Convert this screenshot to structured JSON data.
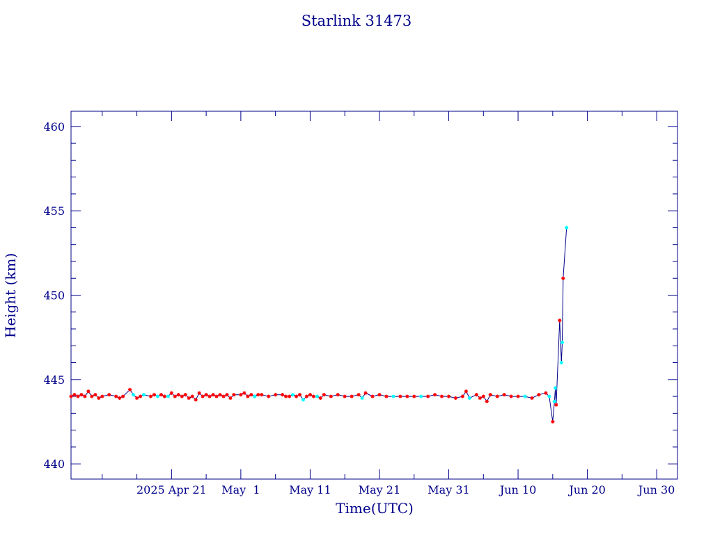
{
  "chart_data": {
    "type": "line",
    "title": "Starlink 31473",
    "xlabel": "Time(UTC)",
    "ylabel": "Height (km)",
    "x_axis": {
      "kind": "date",
      "range": [
        "2025-04-06T12:00",
        "2025-07-03T00:00"
      ],
      "tick_labels": [
        {
          "date": "2025-04-21",
          "label": "2025 Apr 21"
        },
        {
          "date": "2025-05-01",
          "label": "May  1"
        },
        {
          "date": "2025-05-11",
          "label": "May 11"
        },
        {
          "date": "2025-05-21",
          "label": "May 21"
        },
        {
          "date": "2025-05-31",
          "label": "May 31"
        },
        {
          "date": "2025-06-10",
          "label": "Jun 10"
        },
        {
          "date": "2025-06-20",
          "label": "Jun 20"
        },
        {
          "date": "2025-06-30",
          "label": "Jun 30"
        }
      ]
    },
    "y_axis": {
      "range": [
        439.1,
        460.9
      ],
      "major_ticks": [
        440,
        445,
        450,
        455,
        460
      ],
      "tick_labels": [
        "440",
        "445",
        "450",
        "455",
        "460"
      ]
    },
    "grid": false,
    "colors": {
      "axis": "#00008b",
      "line": "#00008b",
      "marker_primary": "#ff0000",
      "marker_secondary": "#00ffff"
    },
    "series": [
      {
        "points": [
          {
            "x": "2025-04-06T12:00",
            "y": 444.0,
            "m": "r"
          },
          {
            "x": "2025-04-07T00:00",
            "y": 444.1,
            "m": "r"
          },
          {
            "x": "2025-04-07T12:00",
            "y": 444.0,
            "m": "r"
          },
          {
            "x": "2025-04-08T00:00",
            "y": 444.1,
            "m": "r"
          },
          {
            "x": "2025-04-08T12:00",
            "y": 444.0,
            "m": "r"
          },
          {
            "x": "2025-04-09T00:00",
            "y": 444.3,
            "m": "r"
          },
          {
            "x": "2025-04-09T12:00",
            "y": 444.0,
            "m": "r"
          },
          {
            "x": "2025-04-10T00:00",
            "y": 444.1,
            "m": "r"
          },
          {
            "x": "2025-04-10T12:00",
            "y": 443.9,
            "m": "r"
          },
          {
            "x": "2025-04-11T00:00",
            "y": 444.0,
            "m": "r"
          },
          {
            "x": "2025-04-12T00:00",
            "y": 444.1,
            "m": "r"
          },
          {
            "x": "2025-04-13T00:00",
            "y": 444.0,
            "m": "r"
          },
          {
            "x": "2025-04-13T12:00",
            "y": 443.9,
            "m": "r"
          },
          {
            "x": "2025-04-14T00:00",
            "y": 444.0,
            "m": "r"
          },
          {
            "x": "2025-04-15T00:00",
            "y": 444.4,
            "m": "r"
          },
          {
            "x": "2025-04-15T12:00",
            "y": 444.1,
            "m": "c"
          },
          {
            "x": "2025-04-16T00:00",
            "y": 443.9,
            "m": "r"
          },
          {
            "x": "2025-04-16T12:00",
            "y": 444.0,
            "m": "r"
          },
          {
            "x": "2025-04-17T00:00",
            "y": 444.1,
            "m": "c"
          },
          {
            "x": "2025-04-18T00:00",
            "y": 444.0,
            "m": "r"
          },
          {
            "x": "2025-04-18T12:00",
            "y": 444.1,
            "m": "r"
          },
          {
            "x": "2025-04-19T00:00",
            "y": 444.0,
            "m": "c"
          },
          {
            "x": "2025-04-19T12:00",
            "y": 444.1,
            "m": "r"
          },
          {
            "x": "2025-04-20T00:00",
            "y": 444.0,
            "m": "r"
          },
          {
            "x": "2025-04-20T12:00",
            "y": 444.0,
            "m": "c"
          },
          {
            "x": "2025-04-21T00:00",
            "y": 444.2,
            "m": "r"
          },
          {
            "x": "2025-04-21T12:00",
            "y": 444.0,
            "m": "r"
          },
          {
            "x": "2025-04-22T00:00",
            "y": 444.1,
            "m": "r"
          },
          {
            "x": "2025-04-22T12:00",
            "y": 444.0,
            "m": "r"
          },
          {
            "x": "2025-04-23T00:00",
            "y": 444.1,
            "m": "r"
          },
          {
            "x": "2025-04-23T12:00",
            "y": 443.9,
            "m": "r"
          },
          {
            "x": "2025-04-24T00:00",
            "y": 444.0,
            "m": "r"
          },
          {
            "x": "2025-04-24T12:00",
            "y": 443.8,
            "m": "r"
          },
          {
            "x": "2025-04-25T00:00",
            "y": 444.2,
            "m": "r"
          },
          {
            "x": "2025-04-25T12:00",
            "y": 444.0,
            "m": "r"
          },
          {
            "x": "2025-04-26T00:00",
            "y": 444.1,
            "m": "r"
          },
          {
            "x": "2025-04-26T12:00",
            "y": 444.0,
            "m": "r"
          },
          {
            "x": "2025-04-27T00:00",
            "y": 444.1,
            "m": "r"
          },
          {
            "x": "2025-04-27T12:00",
            "y": 444.0,
            "m": "r"
          },
          {
            "x": "2025-04-28T00:00",
            "y": 444.1,
            "m": "r"
          },
          {
            "x": "2025-04-28T12:00",
            "y": 444.0,
            "m": "r"
          },
          {
            "x": "2025-04-29T00:00",
            "y": 444.1,
            "m": "r"
          },
          {
            "x": "2025-04-29T12:00",
            "y": 443.9,
            "m": "r"
          },
          {
            "x": "2025-04-30T00:00",
            "y": 444.1,
            "m": "r"
          },
          {
            "x": "2025-05-01T00:00",
            "y": 444.1,
            "m": "r"
          },
          {
            "x": "2025-05-01T12:00",
            "y": 444.2,
            "m": "r"
          },
          {
            "x": "2025-05-02T00:00",
            "y": 444.0,
            "m": "r"
          },
          {
            "x": "2025-05-02T12:00",
            "y": 444.1,
            "m": "r"
          },
          {
            "x": "2025-05-03T00:00",
            "y": 444.0,
            "m": "c"
          },
          {
            "x": "2025-05-03T12:00",
            "y": 444.1,
            "m": "r"
          },
          {
            "x": "2025-05-04T00:00",
            "y": 444.1,
            "m": "r"
          },
          {
            "x": "2025-05-05T00:00",
            "y": 444.0,
            "m": "r"
          },
          {
            "x": "2025-05-06T00:00",
            "y": 444.1,
            "m": "r"
          },
          {
            "x": "2025-05-07T00:00",
            "y": 444.1,
            "m": "r"
          },
          {
            "x": "2025-05-07T12:00",
            "y": 444.0,
            "m": "r"
          },
          {
            "x": "2025-05-08T00:00",
            "y": 444.0,
            "m": "r"
          },
          {
            "x": "2025-05-08T12:00",
            "y": 444.1,
            "m": "c"
          },
          {
            "x": "2025-05-09T00:00",
            "y": 444.0,
            "m": "r"
          },
          {
            "x": "2025-05-09T12:00",
            "y": 444.1,
            "m": "r"
          },
          {
            "x": "2025-05-10T00:00",
            "y": 443.8,
            "m": "c"
          },
          {
            "x": "2025-05-10T12:00",
            "y": 444.0,
            "m": "r"
          },
          {
            "x": "2025-05-11T00:00",
            "y": 444.1,
            "m": "r"
          },
          {
            "x": "2025-05-11T12:00",
            "y": 444.0,
            "m": "r"
          },
          {
            "x": "2025-05-12T00:00",
            "y": 444.0,
            "m": "c"
          },
          {
            "x": "2025-05-12T12:00",
            "y": 443.9,
            "m": "r"
          },
          {
            "x": "2025-05-13T00:00",
            "y": 444.1,
            "m": "r"
          },
          {
            "x": "2025-05-14T00:00",
            "y": 444.0,
            "m": "r"
          },
          {
            "x": "2025-05-15T00:00",
            "y": 444.1,
            "m": "r"
          },
          {
            "x": "2025-05-16T00:00",
            "y": 444.0,
            "m": "r"
          },
          {
            "x": "2025-05-17T00:00",
            "y": 444.0,
            "m": "r"
          },
          {
            "x": "2025-05-18T00:00",
            "y": 444.1,
            "m": "r"
          },
          {
            "x": "2025-05-18T12:00",
            "y": 443.9,
            "m": "c"
          },
          {
            "x": "2025-05-19T00:00",
            "y": 444.2,
            "m": "r"
          },
          {
            "x": "2025-05-20T00:00",
            "y": 444.0,
            "m": "r"
          },
          {
            "x": "2025-05-21T00:00",
            "y": 444.1,
            "m": "r"
          },
          {
            "x": "2025-05-22T00:00",
            "y": 444.0,
            "m": "r"
          },
          {
            "x": "2025-05-23T00:00",
            "y": 444.0,
            "m": "c"
          },
          {
            "x": "2025-05-24T00:00",
            "y": 444.0,
            "m": "r"
          },
          {
            "x": "2025-05-25T00:00",
            "y": 444.0,
            "m": "r"
          },
          {
            "x": "2025-05-26T00:00",
            "y": 444.0,
            "m": "r"
          },
          {
            "x": "2025-05-27T00:00",
            "y": 444.0,
            "m": "c"
          },
          {
            "x": "2025-05-28T00:00",
            "y": 444.0,
            "m": "r"
          },
          {
            "x": "2025-05-29T00:00",
            "y": 444.1,
            "m": "r"
          },
          {
            "x": "2025-05-30T00:00",
            "y": 444.0,
            "m": "r"
          },
          {
            "x": "2025-05-31T00:00",
            "y": 444.0,
            "m": "r"
          },
          {
            "x": "2025-06-01T00:00",
            "y": 443.9,
            "m": "r"
          },
          {
            "x": "2025-06-02T00:00",
            "y": 444.0,
            "m": "r"
          },
          {
            "x": "2025-06-02T12:00",
            "y": 444.3,
            "m": "r"
          },
          {
            "x": "2025-06-03T00:00",
            "y": 443.9,
            "m": "c"
          },
          {
            "x": "2025-06-04T00:00",
            "y": 444.1,
            "m": "r"
          },
          {
            "x": "2025-06-04T12:00",
            "y": 443.9,
            "m": "r"
          },
          {
            "x": "2025-06-05T00:00",
            "y": 444.0,
            "m": "r"
          },
          {
            "x": "2025-06-05T12:00",
            "y": 443.7,
            "m": "r"
          },
          {
            "x": "2025-06-06T00:00",
            "y": 444.1,
            "m": "r"
          },
          {
            "x": "2025-06-07T00:00",
            "y": 444.0,
            "m": "r"
          },
          {
            "x": "2025-06-08T00:00",
            "y": 444.1,
            "m": "r"
          },
          {
            "x": "2025-06-09T00:00",
            "y": 444.0,
            "m": "r"
          },
          {
            "x": "2025-06-10T00:00",
            "y": 444.0,
            "m": "r"
          },
          {
            "x": "2025-06-11T00:00",
            "y": 444.0,
            "m": "c"
          },
          {
            "x": "2025-06-12T00:00",
            "y": 443.9,
            "m": "r"
          },
          {
            "x": "2025-06-13T00:00",
            "y": 444.1,
            "m": "r"
          },
          {
            "x": "2025-06-14T00:00",
            "y": 444.2,
            "m": "r"
          },
          {
            "x": "2025-06-14T12:00",
            "y": 444.0,
            "m": "c"
          },
          {
            "x": "2025-06-15T00:00",
            "y": 442.5,
            "m": "r"
          },
          {
            "x": "2025-06-15T06:00",
            "y": 443.7,
            "m": "c"
          },
          {
            "x": "2025-06-15T09:00",
            "y": 444.5,
            "m": "c"
          },
          {
            "x": "2025-06-15T12:00",
            "y": 443.5,
            "m": "r"
          },
          {
            "x": "2025-06-16T00:00",
            "y": 448.5,
            "m": "r"
          },
          {
            "x": "2025-06-16T06:00",
            "y": 446.0,
            "m": "c"
          },
          {
            "x": "2025-06-16T09:00",
            "y": 447.2,
            "m": "c"
          },
          {
            "x": "2025-06-16T12:00",
            "y": 451.0,
            "m": "r"
          },
          {
            "x": "2025-06-17T00:00",
            "y": 454.0,
            "m": "c"
          }
        ]
      }
    ]
  }
}
